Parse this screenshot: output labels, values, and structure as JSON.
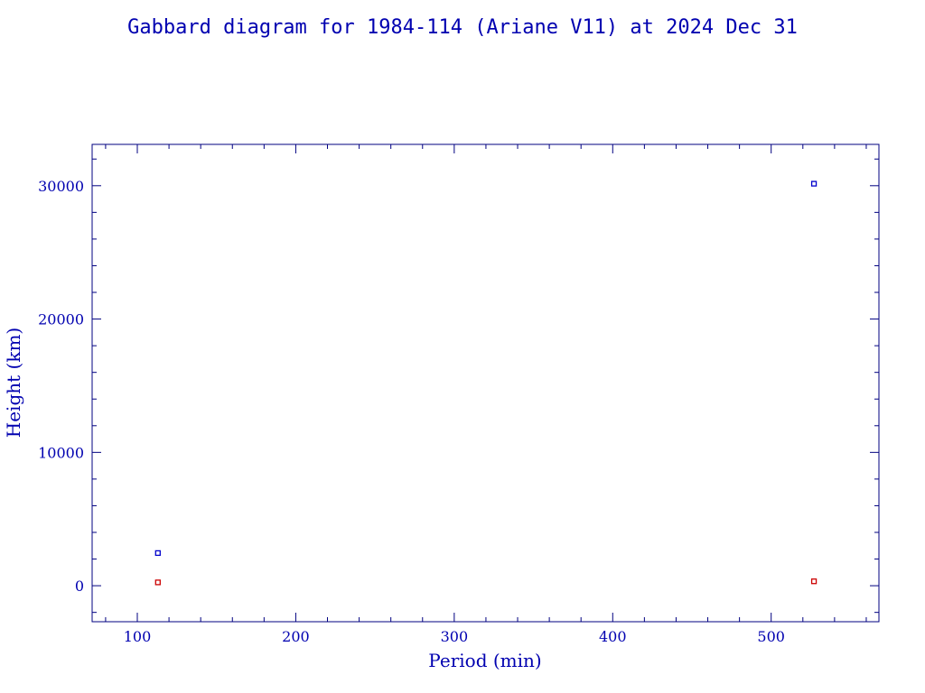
{
  "chart_data": {
    "type": "scatter",
    "title": "Gabbard diagram for 1984-114 (Ariane V11) at 2024 Dec 31",
    "xlabel": "Period (min)",
    "ylabel": "Height (km)",
    "xlim": [
      71.5,
      568
    ],
    "ylim": [
      -2700,
      33100
    ],
    "x_ticks": [
      100,
      200,
      300,
      400,
      500
    ],
    "y_ticks": [
      0,
      10000,
      20000,
      30000
    ],
    "x_tick_labels": [
      "100",
      "200",
      "300",
      "400",
      "500"
    ],
    "y_tick_labels": [
      "0",
      "10000",
      "20000",
      "30000"
    ],
    "x_minor_step": 20,
    "y_minor_step": 2000,
    "grid": false,
    "series": [
      {
        "color": "#0000cc",
        "points": [
          {
            "x": 113,
            "y": 2450
          },
          {
            "x": 527,
            "y": 30150
          }
        ]
      },
      {
        "color": "#cc0000",
        "points": [
          {
            "x": 113,
            "y": 250
          },
          {
            "x": 527,
            "y": 330
          }
        ]
      }
    ]
  }
}
